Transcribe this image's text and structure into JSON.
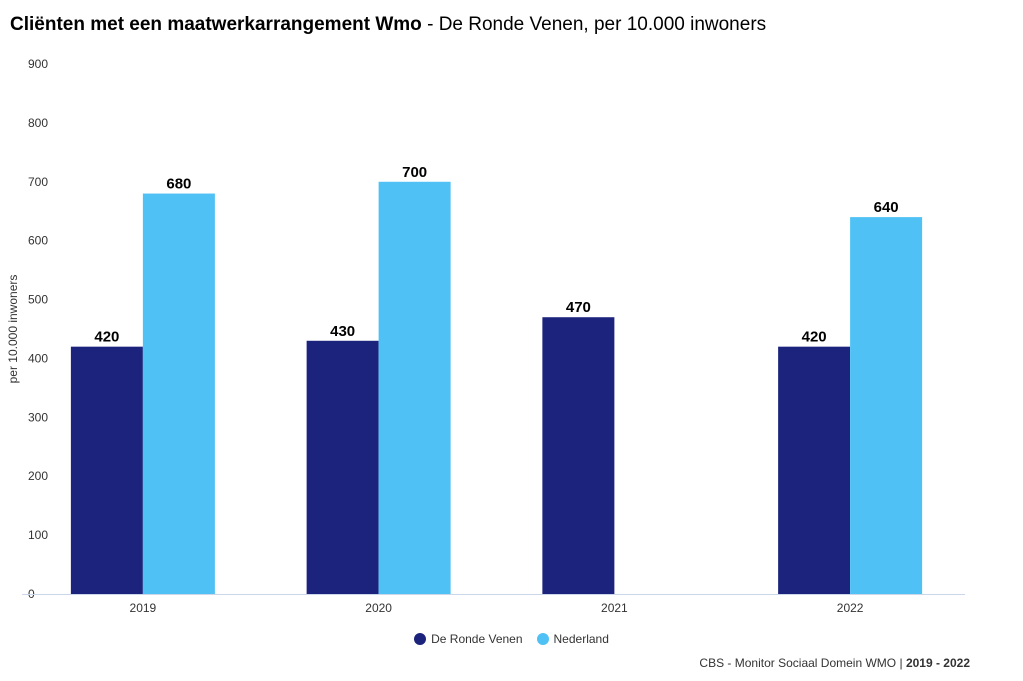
{
  "header": {
    "title_bold": "Cliënten met een maatwerkarrangement Wmo",
    "separator": " - ",
    "title_rest": "De Ronde Venen, per 10.000 inwoners"
  },
  "footer": {
    "source_text": "CBS - Monitor Sociaal Domein WMO | ",
    "period": "2019 - 2022"
  },
  "colors": {
    "series_1": "#1b237c",
    "series_2": "#4fc1f5",
    "grid": "#e6e6e6",
    "axis": "#ccd6eb"
  },
  "chart_data": {
    "type": "bar",
    "title": "Cliënten met een maatwerkarrangement Wmo - De Ronde Venen, per 10.000 inwoners",
    "xlabel": "",
    "ylabel": "per 10.000 inwoners",
    "ylim": [
      0,
      900
    ],
    "yticks": [
      0,
      100,
      200,
      300,
      400,
      500,
      600,
      700,
      800,
      900
    ],
    "categories": [
      "2019",
      "2020",
      "2021",
      "2022"
    ],
    "series": [
      {
        "name": "De Ronde Venen",
        "values": [
          420,
          430,
          470,
          420
        ],
        "labels": [
          "420",
          "430",
          "470",
          "420"
        ],
        "color": "#1b237c"
      },
      {
        "name": "Nederland",
        "values": [
          680,
          700,
          null,
          640
        ],
        "labels": [
          "680",
          "700",
          "",
          "640"
        ],
        "color": "#4fc1f5"
      }
    ],
    "legend_position": "bottom-center",
    "grid": false
  }
}
